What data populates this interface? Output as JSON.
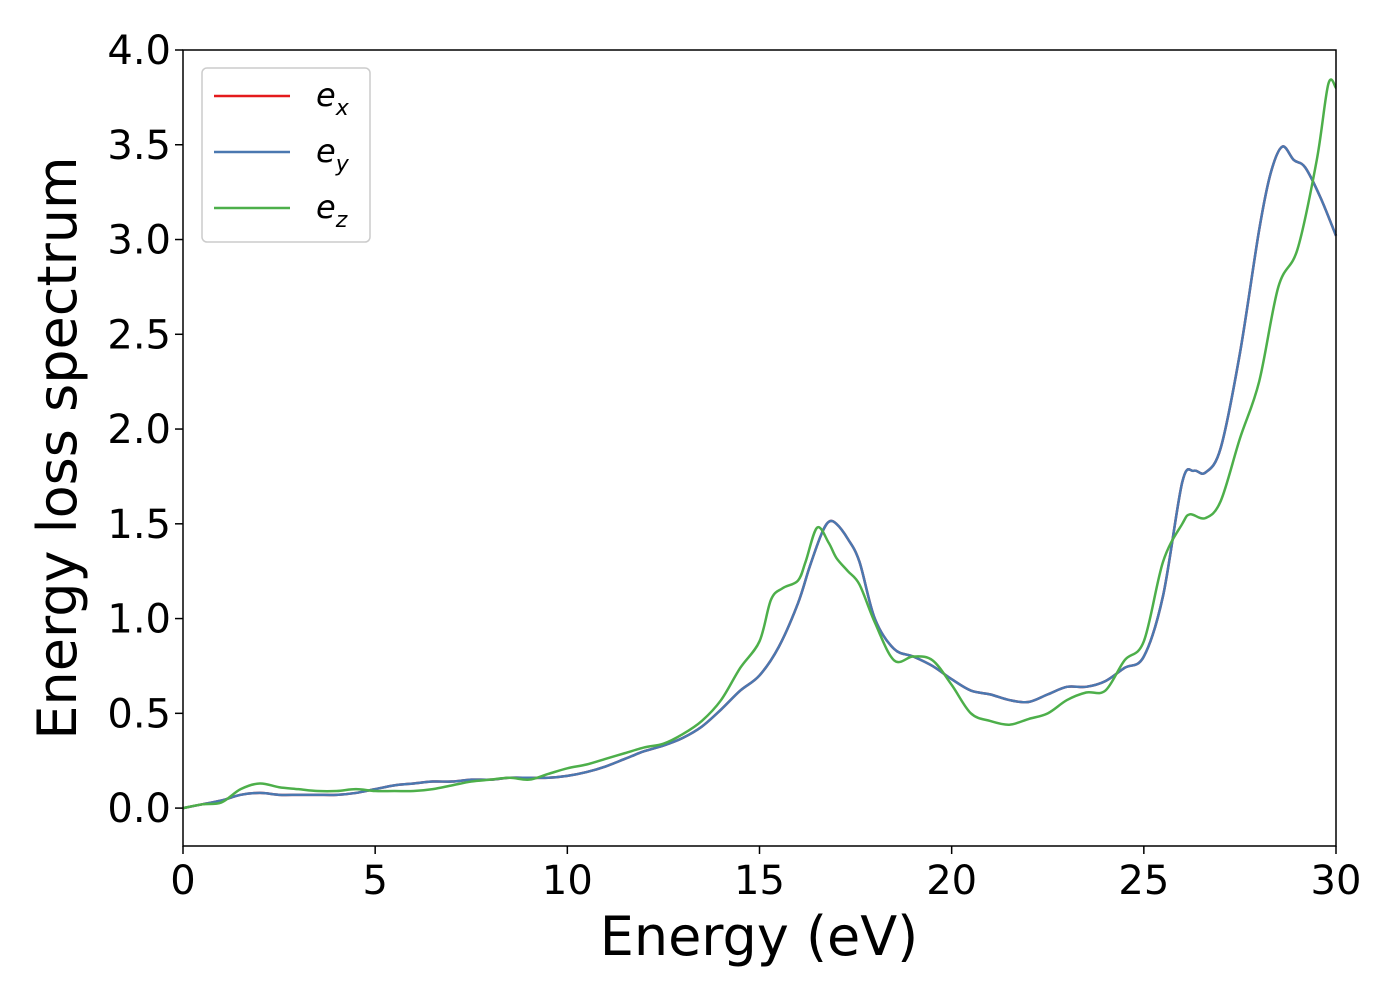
{
  "chart_data": {
    "type": "line",
    "title": "",
    "xlabel": "Energy (eV)",
    "ylabel": "Energy loss spectrum",
    "xlim": [
      0,
      30
    ],
    "ylim": [
      -0.2,
      4.0
    ],
    "xticks": [
      "0",
      "5",
      "10",
      "15",
      "20",
      "25",
      "30"
    ],
    "yticks": [
      "0.0",
      "0.5",
      "1.0",
      "1.5",
      "2.0",
      "2.5",
      "3.0",
      "3.5",
      "4.0"
    ],
    "grid": false,
    "legend_position": "top-left",
    "series": [
      {
        "name": "e_x",
        "legend_main": "e",
        "legend_sub": "x",
        "color": "#e41a1c",
        "x": [
          0,
          0.5,
          1,
          1.5,
          2,
          2.5,
          3,
          3.5,
          4,
          4.5,
          5,
          5.5,
          6,
          6.5,
          7,
          7.5,
          8,
          8.5,
          9,
          9.5,
          10,
          10.5,
          11,
          11.5,
          12,
          12.5,
          13,
          13.5,
          14,
          14.5,
          15,
          15.5,
          16,
          16.3,
          16.6,
          16.8,
          17,
          17.3,
          17.6,
          18,
          18.5,
          19,
          19.5,
          20,
          20.5,
          21,
          21.5,
          22,
          22.5,
          23,
          23.5,
          24,
          24.5,
          25,
          25.5,
          26,
          26.3,
          26.6,
          27,
          27.5,
          28,
          28.3,
          28.6,
          28.9,
          29.2,
          29.6,
          30
        ],
        "values": [
          0,
          0.02,
          0.04,
          0.07,
          0.08,
          0.07,
          0.07,
          0.07,
          0.07,
          0.08,
          0.1,
          0.12,
          0.13,
          0.14,
          0.14,
          0.15,
          0.15,
          0.16,
          0.16,
          0.16,
          0.17,
          0.19,
          0.22,
          0.26,
          0.3,
          0.33,
          0.37,
          0.43,
          0.52,
          0.62,
          0.7,
          0.85,
          1.08,
          1.27,
          1.44,
          1.51,
          1.5,
          1.42,
          1.3,
          1.0,
          0.84,
          0.8,
          0.75,
          0.68,
          0.62,
          0.6,
          0.57,
          0.56,
          0.6,
          0.64,
          0.64,
          0.67,
          0.74,
          0.8,
          1.12,
          1.72,
          1.78,
          1.77,
          1.9,
          2.4,
          3.05,
          3.35,
          3.49,
          3.42,
          3.38,
          3.22,
          3.02
        ]
      },
      {
        "name": "e_y",
        "legend_main": "e",
        "legend_sub": "y",
        "color": "#4a78b0",
        "x": [
          0,
          0.5,
          1,
          1.5,
          2,
          2.5,
          3,
          3.5,
          4,
          4.5,
          5,
          5.5,
          6,
          6.5,
          7,
          7.5,
          8,
          8.5,
          9,
          9.5,
          10,
          10.5,
          11,
          11.5,
          12,
          12.5,
          13,
          13.5,
          14,
          14.5,
          15,
          15.5,
          16,
          16.3,
          16.6,
          16.8,
          17,
          17.3,
          17.6,
          18,
          18.5,
          19,
          19.5,
          20,
          20.5,
          21,
          21.5,
          22,
          22.5,
          23,
          23.5,
          24,
          24.5,
          25,
          25.5,
          26,
          26.3,
          26.6,
          27,
          27.5,
          28,
          28.3,
          28.6,
          28.9,
          29.2,
          29.6,
          30
        ],
        "values": [
          0,
          0.02,
          0.04,
          0.07,
          0.08,
          0.07,
          0.07,
          0.07,
          0.07,
          0.08,
          0.1,
          0.12,
          0.13,
          0.14,
          0.14,
          0.15,
          0.15,
          0.16,
          0.16,
          0.16,
          0.17,
          0.19,
          0.22,
          0.26,
          0.3,
          0.33,
          0.37,
          0.43,
          0.52,
          0.62,
          0.7,
          0.85,
          1.08,
          1.27,
          1.44,
          1.51,
          1.5,
          1.42,
          1.3,
          1.0,
          0.84,
          0.8,
          0.75,
          0.68,
          0.62,
          0.6,
          0.57,
          0.56,
          0.6,
          0.64,
          0.64,
          0.67,
          0.74,
          0.8,
          1.12,
          1.72,
          1.78,
          1.77,
          1.9,
          2.4,
          3.05,
          3.35,
          3.49,
          3.42,
          3.38,
          3.22,
          3.02
        ]
      },
      {
        "name": "e_z",
        "legend_main": "e",
        "legend_sub": "z",
        "color": "#4daf4a",
        "x": [
          0,
          0.5,
          1,
          1.5,
          2,
          2.5,
          3,
          3.5,
          4,
          4.5,
          5,
          5.5,
          6,
          6.5,
          7,
          7.5,
          8,
          8.5,
          9,
          9.5,
          10,
          10.5,
          11,
          11.5,
          12,
          12.5,
          13,
          13.5,
          14,
          14.5,
          15,
          15.3,
          15.6,
          16,
          16.2,
          16.5,
          16.8,
          17,
          17.3,
          17.6,
          18,
          18.5,
          19,
          19.5,
          20,
          20.5,
          21,
          21.5,
          22,
          22.5,
          23,
          23.5,
          24,
          24.5,
          25,
          25.5,
          26,
          26.2,
          26.6,
          27,
          27.5,
          28,
          28.5,
          29,
          29.5,
          29.8,
          30
        ],
        "values": [
          0,
          0.02,
          0.03,
          0.1,
          0.13,
          0.11,
          0.1,
          0.09,
          0.09,
          0.1,
          0.09,
          0.09,
          0.09,
          0.1,
          0.12,
          0.14,
          0.15,
          0.16,
          0.15,
          0.18,
          0.21,
          0.23,
          0.26,
          0.29,
          0.32,
          0.34,
          0.39,
          0.46,
          0.57,
          0.74,
          0.88,
          1.1,
          1.16,
          1.2,
          1.3,
          1.48,
          1.4,
          1.32,
          1.25,
          1.18,
          0.98,
          0.78,
          0.8,
          0.78,
          0.65,
          0.5,
          0.46,
          0.44,
          0.47,
          0.5,
          0.57,
          0.61,
          0.62,
          0.78,
          0.88,
          1.3,
          1.5,
          1.55,
          1.53,
          1.62,
          1.95,
          2.25,
          2.75,
          2.95,
          3.42,
          3.82,
          3.8
        ]
      }
    ]
  }
}
